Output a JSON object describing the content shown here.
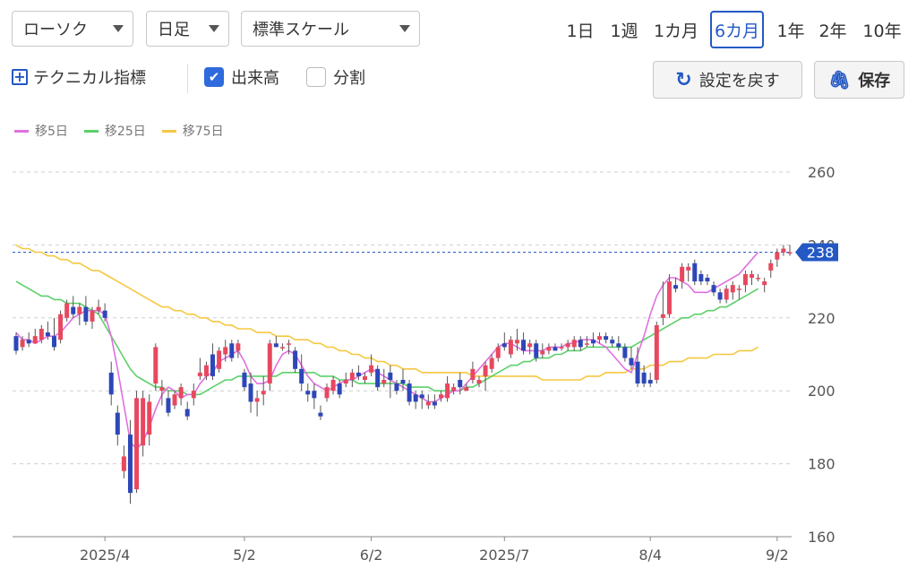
{
  "toolbar": {
    "chart_style": "ローソク",
    "interval": "日足",
    "scale": "標準スケール",
    "periods": [
      "1日",
      "1週",
      "1カ月",
      "6カ月",
      "1年",
      "2年",
      "10年"
    ],
    "active_period": "6カ月",
    "technical_label": "テクニカル指標",
    "volume_label": "出来高",
    "volume_checked": true,
    "split_label": "分割",
    "split_checked": false,
    "reset_label": "設定を戻す",
    "save_label": "保存"
  },
  "colors": {
    "up": "#e8485f",
    "down": "#2d47b8",
    "accent": "#2459c4",
    "ma5": "#e070e0",
    "ma25": "#5cd06a",
    "ma75": "#f5c842"
  },
  "chart_data": {
    "type": "candlestick",
    "legend": [
      {
        "name": "移5日",
        "color": "#e070e0"
      },
      {
        "name": "移25日",
        "color": "#5cd06a"
      },
      {
        "name": "移75日",
        "color": "#f5c842"
      }
    ],
    "y_ticks": [
      260,
      240,
      220,
      200,
      180,
      160
    ],
    "ylim": [
      160,
      263
    ],
    "x_ticks": [
      {
        "label": "2025/4",
        "index": 14
      },
      {
        "label": "5/2",
        "index": 36
      },
      {
        "label": "6/2",
        "index": 56
      },
      {
        "label": "2025/7",
        "index": 77
      },
      {
        "label": "8/4",
        "index": 100
      },
      {
        "label": "9/2",
        "index": 120
      }
    ],
    "last_price": 238,
    "candles": [
      {
        "o": 215,
        "h": 216,
        "l": 210,
        "c": 211
      },
      {
        "o": 212,
        "h": 215,
        "l": 211,
        "c": 214
      },
      {
        "o": 214,
        "h": 216,
        "l": 212,
        "c": 213
      },
      {
        "o": 213,
        "h": 217,
        "l": 213,
        "c": 215
      },
      {
        "o": 214,
        "h": 218,
        "l": 213,
        "c": 217
      },
      {
        "o": 216,
        "h": 219,
        "l": 214,
        "c": 215
      },
      {
        "o": 215,
        "h": 220,
        "l": 211,
        "c": 212
      },
      {
        "o": 214,
        "h": 222,
        "l": 213,
        "c": 221
      },
      {
        "o": 220,
        "h": 225,
        "l": 219,
        "c": 224
      },
      {
        "o": 223,
        "h": 226,
        "l": 220,
        "c": 221
      },
      {
        "o": 221,
        "h": 224,
        "l": 218,
        "c": 223
      },
      {
        "o": 223,
        "h": 226,
        "l": 218,
        "c": 219
      },
      {
        "o": 219,
        "h": 223,
        "l": 217,
        "c": 222
      },
      {
        "o": 222,
        "h": 225,
        "l": 221,
        "c": 223
      },
      {
        "o": 222,
        "h": 224,
        "l": 219,
        "c": 220
      },
      {
        "o": 205,
        "h": 208,
        "l": 196,
        "c": 199
      },
      {
        "o": 194,
        "h": 196,
        "l": 185,
        "c": 188
      },
      {
        "o": 178,
        "h": 185,
        "l": 176,
        "c": 182
      },
      {
        "o": 188,
        "h": 192,
        "l": 169,
        "c": 172
      },
      {
        "o": 173,
        "h": 200,
        "l": 172,
        "c": 198
      },
      {
        "o": 185,
        "h": 200,
        "l": 182,
        "c": 198
      },
      {
        "o": 188,
        "h": 199,
        "l": 185,
        "c": 197
      },
      {
        "o": 202,
        "h": 213,
        "l": 200,
        "c": 212
      },
      {
        "o": 200,
        "h": 203,
        "l": 196,
        "c": 201
      },
      {
        "o": 198,
        "h": 200,
        "l": 193,
        "c": 194
      },
      {
        "o": 196,
        "h": 200,
        "l": 195,
        "c": 199
      },
      {
        "o": 198,
        "h": 202,
        "l": 196,
        "c": 201
      },
      {
        "o": 195,
        "h": 197,
        "l": 192,
        "c": 193
      },
      {
        "o": 198,
        "h": 202,
        "l": 196,
        "c": 200
      },
      {
        "o": 204,
        "h": 209,
        "l": 203,
        "c": 205
      },
      {
        "o": 204,
        "h": 208,
        "l": 203,
        "c": 207
      },
      {
        "o": 210,
        "h": 213,
        "l": 203,
        "c": 204
      },
      {
        "o": 206,
        "h": 212,
        "l": 205,
        "c": 211
      },
      {
        "o": 210,
        "h": 214,
        "l": 208,
        "c": 212
      },
      {
        "o": 213,
        "h": 214,
        "l": 208,
        "c": 209
      },
      {
        "o": 211,
        "h": 214,
        "l": 209,
        "c": 213
      },
      {
        "o": 205,
        "h": 206,
        "l": 200,
        "c": 201
      },
      {
        "o": 202,
        "h": 205,
        "l": 194,
        "c": 197
      },
      {
        "o": 197,
        "h": 200,
        "l": 193,
        "c": 198
      },
      {
        "o": 199,
        "h": 204,
        "l": 196,
        "c": 200
      },
      {
        "o": 202,
        "h": 214,
        "l": 200,
        "c": 213
      },
      {
        "o": 213,
        "h": 215,
        "l": 212,
        "c": 212
      },
      {
        "o": 212,
        "h": 213,
        "l": 211,
        "c": 212
      },
      {
        "o": 213,
        "h": 214,
        "l": 210,
        "c": 213
      },
      {
        "o": 211,
        "h": 212,
        "l": 205,
        "c": 206
      },
      {
        "o": 206,
        "h": 210,
        "l": 200,
        "c": 202
      },
      {
        "o": 200,
        "h": 202,
        "l": 197,
        "c": 199
      },
      {
        "o": 200,
        "h": 202,
        "l": 195,
        "c": 198
      },
      {
        "o": 194,
        "h": 196,
        "l": 192,
        "c": 193
      },
      {
        "o": 198,
        "h": 202,
        "l": 197,
        "c": 201
      },
      {
        "o": 200,
        "h": 204,
        "l": 199,
        "c": 203
      },
      {
        "o": 202,
        "h": 203,
        "l": 198,
        "c": 199
      },
      {
        "o": 202,
        "h": 205,
        "l": 201,
        "c": 203
      },
      {
        "o": 203,
        "h": 206,
        "l": 201,
        "c": 205
      },
      {
        "o": 205,
        "h": 207,
        "l": 203,
        "c": 204
      },
      {
        "o": 203,
        "h": 205,
        "l": 202,
        "c": 204
      },
      {
        "o": 205,
        "h": 210,
        "l": 204,
        "c": 207
      },
      {
        "o": 206,
        "h": 207,
        "l": 200,
        "c": 201
      },
      {
        "o": 202,
        "h": 206,
        "l": 201,
        "c": 203
      },
      {
        "o": 205,
        "h": 207,
        "l": 198,
        "c": 203
      },
      {
        "o": 202,
        "h": 203,
        "l": 199,
        "c": 200
      },
      {
        "o": 203,
        "h": 206,
        "l": 200,
        "c": 202
      },
      {
        "o": 202,
        "h": 203,
        "l": 196,
        "c": 197
      },
      {
        "o": 199,
        "h": 200,
        "l": 195,
        "c": 197
      },
      {
        "o": 199,
        "h": 200,
        "l": 195,
        "c": 198
      },
      {
        "o": 196,
        "h": 199,
        "l": 195,
        "c": 197
      },
      {
        "o": 197,
        "h": 199,
        "l": 195,
        "c": 196
      },
      {
        "o": 198,
        "h": 200,
        "l": 197,
        "c": 199
      },
      {
        "o": 198,
        "h": 204,
        "l": 197,
        "c": 202
      },
      {
        "o": 200,
        "h": 202,
        "l": 199,
        "c": 201
      },
      {
        "o": 203,
        "h": 205,
        "l": 199,
        "c": 201
      },
      {
        "o": 200,
        "h": 202,
        "l": 200,
        "c": 201
      },
      {
        "o": 203,
        "h": 208,
        "l": 202,
        "c": 206
      },
      {
        "o": 202,
        "h": 204,
        "l": 201,
        "c": 203
      },
      {
        "o": 204,
        "h": 208,
        "l": 200,
        "c": 207
      },
      {
        "o": 206,
        "h": 210,
        "l": 205,
        "c": 209
      },
      {
        "o": 209,
        "h": 213,
        "l": 208,
        "c": 212
      },
      {
        "o": 213,
        "h": 216,
        "l": 211,
        "c": 212
      },
      {
        "o": 210,
        "h": 215,
        "l": 209,
        "c": 214
      },
      {
        "o": 213,
        "h": 217,
        "l": 211,
        "c": 214
      },
      {
        "o": 214,
        "h": 216,
        "l": 210,
        "c": 211
      },
      {
        "o": 212,
        "h": 214,
        "l": 210,
        "c": 213
      },
      {
        "o": 213,
        "h": 214,
        "l": 208,
        "c": 209
      },
      {
        "o": 210,
        "h": 213,
        "l": 209,
        "c": 211
      },
      {
        "o": 211,
        "h": 213,
        "l": 210,
        "c": 212
      },
      {
        "o": 212,
        "h": 213,
        "l": 211,
        "c": 211
      },
      {
        "o": 212,
        "h": 213,
        "l": 211,
        "c": 212
      },
      {
        "o": 212,
        "h": 214,
        "l": 211,
        "c": 213
      },
      {
        "o": 212,
        "h": 215,
        "l": 211,
        "c": 214
      },
      {
        "o": 214,
        "h": 215,
        "l": 211,
        "c": 212
      },
      {
        "o": 213,
        "h": 215,
        "l": 212,
        "c": 213
      },
      {
        "o": 214,
        "h": 216,
        "l": 212,
        "c": 213
      },
      {
        "o": 214,
        "h": 216,
        "l": 213,
        "c": 215
      },
      {
        "o": 215,
        "h": 216,
        "l": 213,
        "c": 214
      },
      {
        "o": 214,
        "h": 215,
        "l": 212,
        "c": 213
      },
      {
        "o": 213,
        "h": 215,
        "l": 211,
        "c": 212
      },
      {
        "o": 212,
        "h": 213,
        "l": 208,
        "c": 209
      },
      {
        "o": 209,
        "h": 212,
        "l": 206,
        "c": 207
      },
      {
        "o": 208,
        "h": 212,
        "l": 201,
        "c": 202
      },
      {
        "o": 205,
        "h": 207,
        "l": 201,
        "c": 202
      },
      {
        "o": 203,
        "h": 205,
        "l": 201,
        "c": 202
      },
      {
        "o": 203,
        "h": 219,
        "l": 202,
        "c": 218
      },
      {
        "o": 220,
        "h": 230,
        "l": 218,
        "c": 221
      },
      {
        "o": 221,
        "h": 232,
        "l": 220,
        "c": 230
      },
      {
        "o": 229,
        "h": 231,
        "l": 227,
        "c": 228
      },
      {
        "o": 230,
        "h": 235,
        "l": 228,
        "c": 234
      },
      {
        "o": 233,
        "h": 235,
        "l": 230,
        "c": 234
      },
      {
        "o": 235,
        "h": 236,
        "l": 229,
        "c": 230
      },
      {
        "o": 232,
        "h": 233,
        "l": 229,
        "c": 230
      },
      {
        "o": 231,
        "h": 232,
        "l": 229,
        "c": 230
      },
      {
        "o": 229,
        "h": 230,
        "l": 226,
        "c": 227
      },
      {
        "o": 227,
        "h": 228,
        "l": 224,
        "c": 225
      },
      {
        "o": 225,
        "h": 229,
        "l": 224,
        "c": 228
      },
      {
        "o": 227,
        "h": 230,
        "l": 225,
        "c": 229
      },
      {
        "o": 228,
        "h": 229,
        "l": 225,
        "c": 228
      },
      {
        "o": 229,
        "h": 233,
        "l": 227,
        "c": 232
      },
      {
        "o": 231,
        "h": 233,
        "l": 229,
        "c": 232
      },
      {
        "o": 231,
        "h": 232,
        "l": 230,
        "c": 231
      },
      {
        "o": 229,
        "h": 231,
        "l": 227,
        "c": 230
      },
      {
        "o": 233,
        "h": 236,
        "l": 231,
        "c": 235
      },
      {
        "o": 236,
        "h": 239,
        "l": 234,
        "c": 238
      },
      {
        "o": 238,
        "h": 240,
        "l": 237,
        "c": 239
      },
      {
        "o": 238,
        "h": 240,
        "l": 237,
        "c": 238
      }
    ],
    "ma5": [
      216,
      214,
      214,
      213,
      214,
      215,
      215,
      216,
      218,
      220,
      221,
      222,
      222,
      222,
      221,
      215,
      206,
      196,
      186,
      184,
      186,
      190,
      195,
      199,
      201,
      200,
      198,
      199,
      199,
      202,
      204,
      205,
      208,
      209,
      210,
      211,
      208,
      204,
      202,
      202,
      203,
      207,
      210,
      211,
      210,
      207,
      204,
      202,
      201,
      200,
      201,
      202,
      203,
      203,
      204,
      205,
      206,
      205,
      204,
      203,
      202,
      201,
      200,
      199,
      198,
      197,
      197,
      198,
      199,
      200,
      200,
      202,
      204,
      206,
      208,
      210,
      212,
      213,
      213,
      212,
      211,
      211,
      211,
      211,
      212,
      212,
      212,
      213,
      213,
      214,
      214,
      214,
      213,
      212,
      210,
      208,
      206,
      205,
      210,
      215,
      221,
      226,
      229,
      231,
      231,
      230,
      229,
      227,
      227,
      227,
      228,
      229,
      230,
      231,
      232,
      234,
      236,
      238
    ],
    "ma25": [
      230,
      229,
      228,
      227,
      226,
      226,
      225,
      225,
      224,
      224,
      224,
      223,
      222,
      221,
      218,
      215,
      212,
      209,
      206,
      204,
      203,
      202,
      201,
      201,
      200,
      200,
      200,
      199,
      199,
      199,
      200,
      201,
      202,
      203,
      203,
      204,
      204,
      204,
      204,
      204,
      204,
      204,
      205,
      205,
      205,
      205,
      205,
      205,
      204,
      204,
      204,
      203,
      203,
      203,
      202,
      202,
      202,
      202,
      202,
      202,
      202,
      202,
      201,
      201,
      201,
      201,
      200,
      200,
      200,
      200,
      200,
      201,
      201,
      202,
      203,
      204,
      205,
      206,
      207,
      207,
      208,
      208,
      209,
      209,
      209,
      210,
      210,
      211,
      211,
      211,
      212,
      212,
      212,
      212,
      212,
      212,
      212,
      212,
      213,
      214,
      215,
      216,
      217,
      218,
      219,
      220,
      220,
      221,
      221,
      222,
      222,
      223,
      223,
      224,
      225,
      226,
      227,
      228
    ],
    "ma75": [
      240,
      239,
      239,
      238,
      238,
      237,
      237,
      236,
      236,
      235,
      235,
      234,
      233,
      233,
      232,
      231,
      230,
      229,
      228,
      227,
      226,
      225,
      224,
      223,
      223,
      222,
      222,
      221,
      221,
      220,
      220,
      219,
      219,
      218,
      218,
      217,
      217,
      217,
      216,
      216,
      216,
      215,
      215,
      215,
      214,
      214,
      214,
      213,
      213,
      212,
      212,
      211,
      211,
      210,
      210,
      209,
      209,
      208,
      208,
      207,
      207,
      206,
      206,
      206,
      205,
      205,
      205,
      205,
      205,
      205,
      205,
      205,
      204,
      204,
      204,
      204,
      204,
      204,
      204,
      204,
      204,
      204,
      204,
      203,
      203,
      203,
      203,
      203,
      203,
      203,
      204,
      204,
      204,
      205,
      205,
      205,
      205,
      206,
      206,
      206,
      207,
      207,
      207,
      208,
      208,
      208,
      209,
      209,
      209,
      209,
      210,
      210,
      210,
      210,
      211,
      211,
      211,
      212
    ]
  }
}
